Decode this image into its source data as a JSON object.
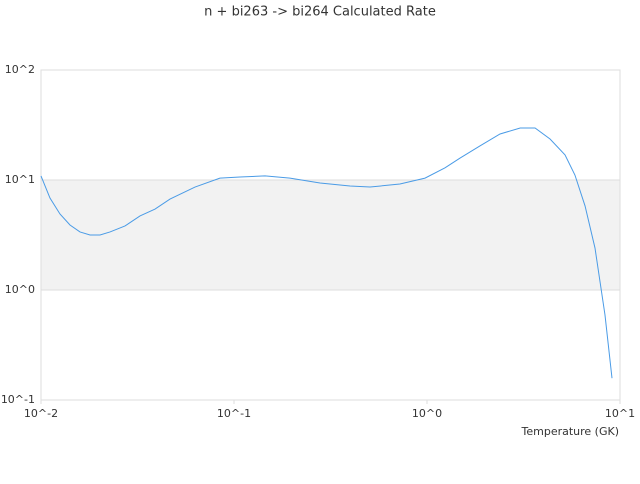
{
  "chart_data": {
    "type": "line",
    "title": "n + bi263 -> bi264 Calculated Rate",
    "x_label": "Temperature (GK)",
    "x_log": true,
    "y_log": true,
    "band_color": "#f2f2f2",
    "grid_color": "#dddddd",
    "xlim": [
      0.01,
      10
    ],
    "ylim": [
      0.1,
      100
    ],
    "xticks": [
      {
        "value": 0.01,
        "label": "10^-2"
      },
      {
        "value": 0.1,
        "label": "10^-1"
      },
      {
        "value": 1,
        "label": "10^0"
      },
      {
        "value": 10,
        "label": "10^1"
      }
    ],
    "yticks": [
      {
        "value": 0.1,
        "label": "10^-1"
      },
      {
        "value": 1,
        "label": "10^0"
      },
      {
        "value": 10,
        "label": "10^1"
      },
      {
        "value": 100,
        "label": "10^2"
      }
    ],
    "x": [
      0.01,
      0.01113,
      0.01254,
      0.01413,
      0.01592,
      0.01795,
      0.02022,
      0.02279,
      0.02725,
      0.03258,
      0.039,
      0.0466,
      0.0628,
      0.0845,
      0.1074,
      0.1448,
      0.195,
      0.279,
      0.399,
      0.507,
      0.724,
      0.977,
      1.24,
      1.48,
      1.88,
      2.39,
      3.04,
      3.63,
      4.34,
      5.19,
      5.84,
      6.59,
      7.42,
      8.36,
      9.09
    ],
    "series": [
      {
        "name": "rate",
        "color": "#4a9be6",
        "values": [
          10.9,
          6.86,
          4.91,
          3.9,
          3.37,
          3.16,
          3.16,
          3.37,
          3.82,
          4.71,
          5.44,
          6.71,
          8.63,
          10.4,
          10.65,
          10.9,
          10.4,
          9.4,
          8.82,
          8.63,
          9.2,
          10.4,
          12.9,
          15.8,
          20.4,
          26.2,
          29.7,
          29.7,
          23.6,
          16.9,
          11.1,
          5.81,
          2.41,
          0.593,
          0.158
        ]
      }
    ]
  }
}
